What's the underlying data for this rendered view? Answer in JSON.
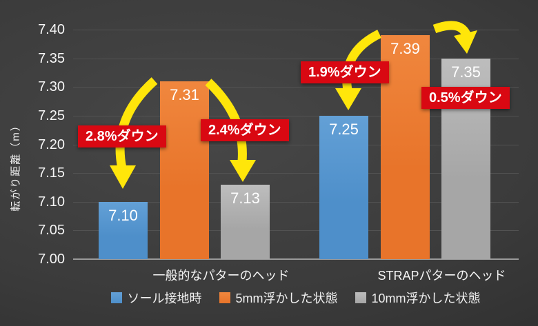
{
  "chart_data": {
    "type": "bar",
    "title": "",
    "ylabel": "転がり距離（m）",
    "ylim": [
      7.0,
      7.4
    ],
    "ytick_step": 0.05,
    "yticks": [
      "7.40",
      "7.35",
      "7.30",
      "7.25",
      "7.20",
      "7.15",
      "7.10",
      "7.05",
      "7.00"
    ],
    "categories": [
      "一般的なパターのヘッド",
      "STRAPパターのヘッド"
    ],
    "series": [
      {
        "name": "ソール接地時",
        "color": "#4e8fca",
        "color_light": "#63a0d6",
        "values": [
          7.1,
          7.25
        ]
      },
      {
        "name": "5mm浮かした状態",
        "color": "#e8742a",
        "color_light": "#f0873e",
        "values": [
          7.31,
          7.39
        ]
      },
      {
        "name": "10mm浮かした状態",
        "color": "#a6a6a6",
        "color_light": "#bdbdbd",
        "values": [
          7.13,
          7.35
        ]
      }
    ],
    "annotations": [
      {
        "label": "2.8%ダウン",
        "group": "一般的なパターのヘッド",
        "from": "5mm浮かした状態",
        "to": "ソール接地時"
      },
      {
        "label": "2.4%ダウン",
        "group": "一般的なパターのヘッド",
        "from": "5mm浮かした状態",
        "to": "10mm浮かした状態"
      },
      {
        "label": "1.9%ダウン",
        "group": "STRAPパターのヘッド",
        "from": "5mm浮かした状態",
        "to": "ソール接地時"
      },
      {
        "label": "0.5%ダウン",
        "group": "STRAPパターのヘッド",
        "from": "5mm浮かした状態",
        "to": "10mm浮かした状態"
      }
    ],
    "grid": true,
    "legend_position": "bottom",
    "colors": {
      "background_center": "#454545",
      "background_edge": "#242424",
      "grid_line": "#525252",
      "baseline": "#9b9b9b",
      "text": "#f5f5f5",
      "badge_background": "#d90812",
      "badge_text": "#ffffff",
      "arrow": "#ffe60a"
    }
  }
}
